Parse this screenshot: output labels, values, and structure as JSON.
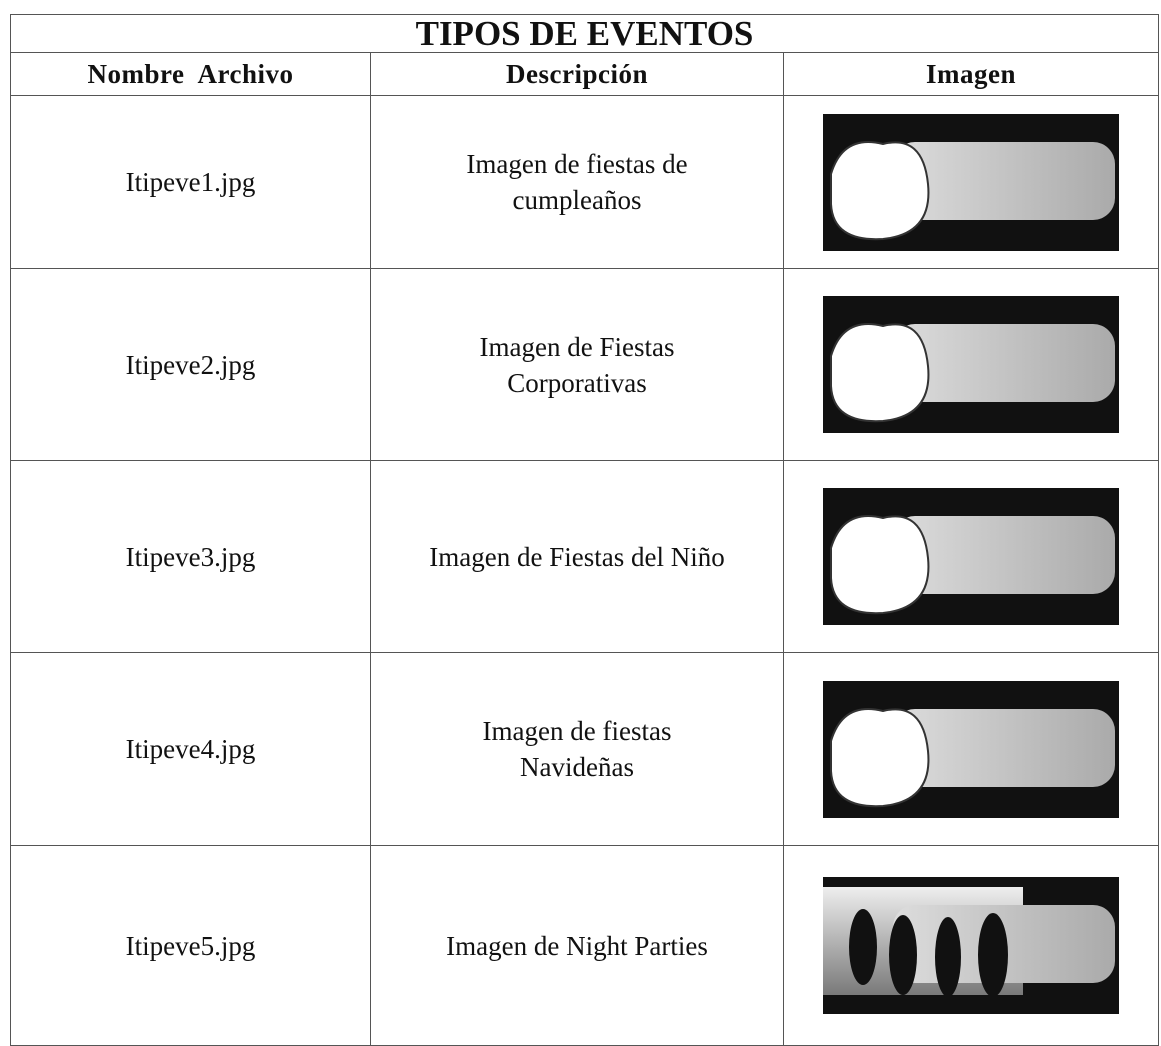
{
  "table": {
    "title": "TIPOS DE EVENTOS",
    "headers": [
      "Nombre  Archivo",
      "Descripción",
      "Imagen"
    ],
    "rows": [
      {
        "file": "Itipeve1.jpg",
        "description": [
          "Imagen de fiestas de",
          "cumpleaños"
        ]
      },
      {
        "file": "Itipeve2.jpg",
        "description": [
          "Imagen de Fiestas",
          "Corporativas"
        ]
      },
      {
        "file": "Itipeve3.jpg",
        "description": [
          "Imagen de Fiestas del Niño"
        ]
      },
      {
        "file": "Itipeve4.jpg",
        "description": [
          "Imagen de fiestas",
          "Navideñas"
        ]
      },
      {
        "file": "Itipeve5.jpg",
        "description": [
          "Imagen de Night Parties"
        ]
      }
    ]
  }
}
